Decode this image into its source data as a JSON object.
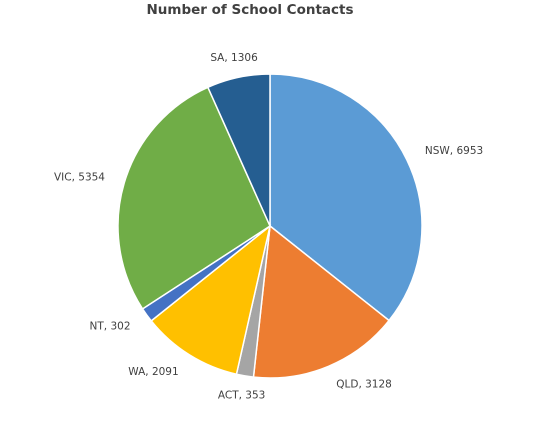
{
  "chart_data": {
    "type": "pie",
    "title": "Number of School Contacts",
    "values": [
      6953,
      3128,
      353,
      2091,
      302,
      5354,
      1306
    ],
    "value_labels": [
      "NSW, 6953",
      "QLD, 3128",
      "ACT, 353",
      "WA, 2091",
      "NT, 302",
      "VIC, 5354",
      "SA, 1306"
    ],
    "colors": [
      "#5b9bd5",
      "#ed7d31",
      "#a5a5a5",
      "#ffc000",
      "#4472c4",
      "#70ad47",
      "#255e91"
    ]
  }
}
